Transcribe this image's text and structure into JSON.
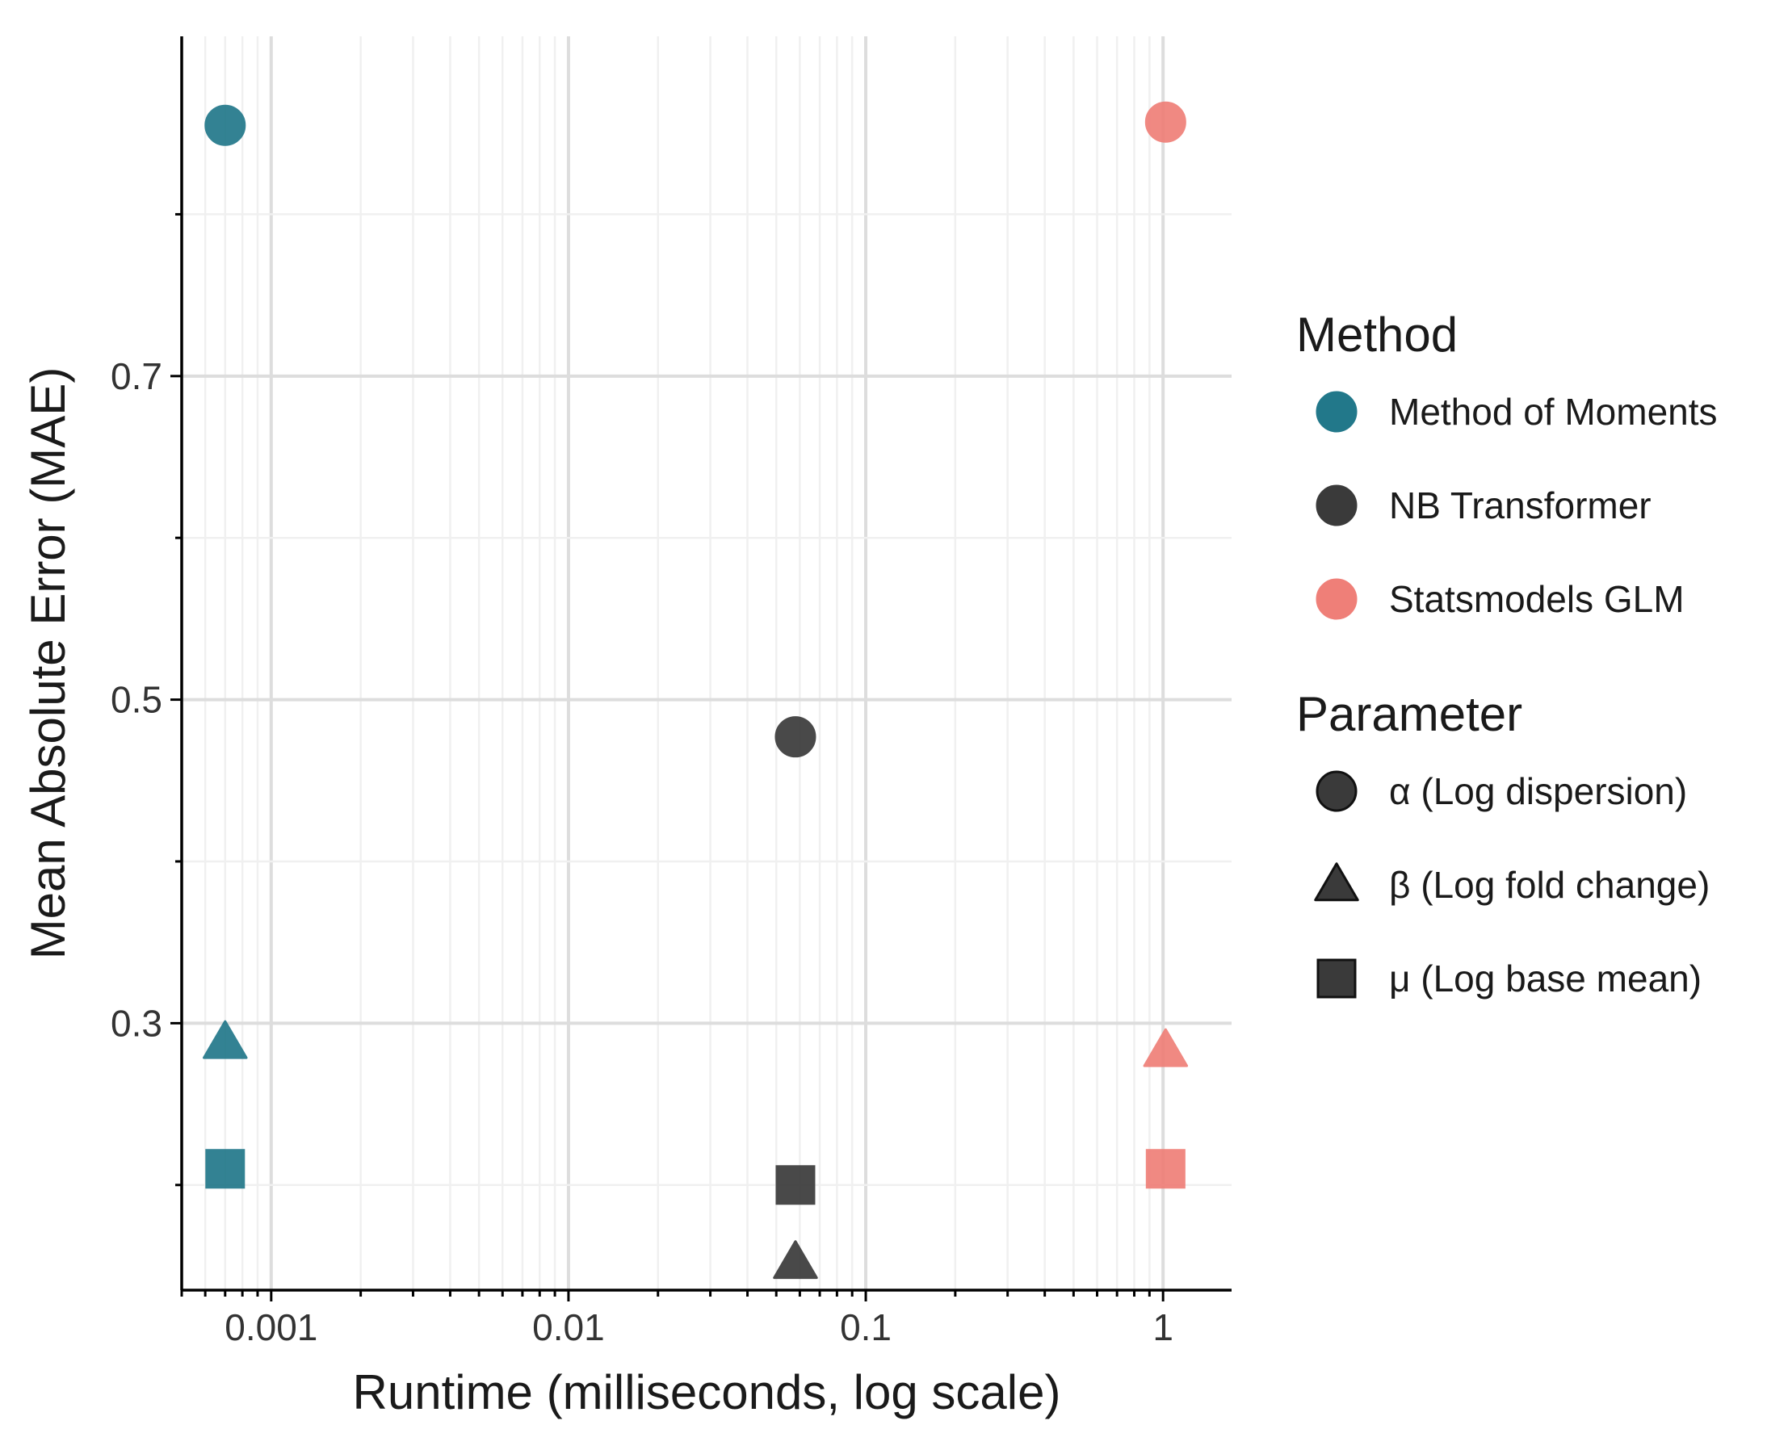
{
  "chart_data": {
    "type": "scatter",
    "xlabel": "Runtime (milliseconds, log scale)",
    "ylabel": "Mean Absolute Error (MAE)",
    "x_scale": "log",
    "xlim": [
      0.0005,
      1.7
    ],
    "ylim": [
      0.135,
      0.91
    ],
    "x_ticks": [
      0.001,
      0.01,
      0.1,
      1
    ],
    "x_tick_labels": [
      "0.001",
      "0.01",
      "0.1",
      "1"
    ],
    "y_ticks": [
      0.3,
      0.5,
      0.7
    ],
    "y_tick_labels": [
      "0.3",
      "0.5",
      "0.7"
    ],
    "y_minor_ticks": [
      0.2,
      0.4,
      0.6,
      0.8
    ],
    "grid": true,
    "legend_position": "right",
    "methods": [
      {
        "name": "Method of Moments",
        "color": "#22788a"
      },
      {
        "name": "NB Transformer",
        "color": "#3a3a3a"
      },
      {
        "name": "Statsmodels GLM",
        "color": "#ef7f78"
      }
    ],
    "parameters": [
      {
        "name": "α (Log dispersion)",
        "shape": "circle"
      },
      {
        "name": "β (Log fold change)",
        "shape": "triangle"
      },
      {
        "name": "μ (Log base mean)",
        "shape": "square"
      }
    ],
    "points": [
      {
        "method": "Method of Moments",
        "parameter": "α (Log dispersion)",
        "x": 0.0007,
        "y": 0.855
      },
      {
        "method": "Method of Moments",
        "parameter": "β (Log fold change)",
        "x": 0.0007,
        "y": 0.288
      },
      {
        "method": "Method of Moments",
        "parameter": "μ (Log base mean)",
        "x": 0.0007,
        "y": 0.21
      },
      {
        "method": "NB Transformer",
        "parameter": "α (Log dispersion)",
        "x": 0.058,
        "y": 0.477
      },
      {
        "method": "NB Transformer",
        "parameter": "β (Log fold change)",
        "x": 0.058,
        "y": 0.152
      },
      {
        "method": "NB Transformer",
        "parameter": "μ (Log base mean)",
        "x": 0.058,
        "y": 0.2
      },
      {
        "method": "Statsmodels GLM",
        "parameter": "α (Log dispersion)",
        "x": 1.02,
        "y": 0.857
      },
      {
        "method": "Statsmodels GLM",
        "parameter": "β (Log fold change)",
        "x": 1.02,
        "y": 0.283
      },
      {
        "method": "Statsmodels GLM",
        "parameter": "μ (Log base mean)",
        "x": 1.02,
        "y": 0.21
      }
    ]
  },
  "legend": {
    "method_title": "Method",
    "parameter_title": "Parameter"
  }
}
